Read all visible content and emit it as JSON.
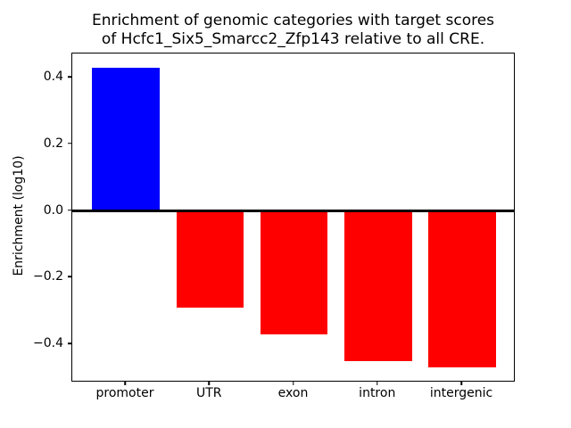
{
  "figure": {
    "title_lines": [
      "Enrichment of genomic categories with target scores",
      "of Hcfc1_Six5_Smarcc2_Zfp143 relative to all CRE."
    ]
  },
  "chart_data": {
    "type": "bar",
    "title": "Enrichment of genomic categories with target scores\nof Hcfc1_Six5_Smarcc2_Zfp143 relative to all CRE.",
    "categories": [
      "promoter",
      "UTR",
      "exon",
      "intron",
      "intergenic"
    ],
    "values": [
      0.43,
      -0.29,
      -0.37,
      -0.45,
      -0.47
    ],
    "bar_colors": [
      "#0000ff",
      "#ff0000",
      "#ff0000",
      "#ff0000",
      "#ff0000"
    ],
    "positive_color": "#0000ff",
    "negative_color": "#ff0000",
    "xlabel": "",
    "ylabel": "Enrichment (log10)",
    "yticks": {
      "values": [
        0.4,
        0.2,
        0.0,
        -0.2,
        -0.4
      ],
      "labels": [
        "0.4",
        "0.2",
        "0.0",
        "−0.2",
        "−0.4"
      ]
    },
    "ylim": [
      -0.515,
      0.473
    ],
    "grid": false,
    "zero_line": true,
    "background_color": "#ffffff",
    "axis_color": "#000000"
  }
}
